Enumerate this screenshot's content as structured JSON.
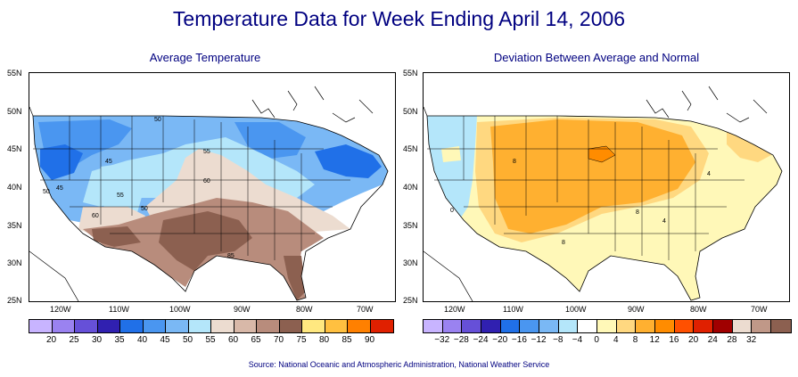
{
  "title": "Temperature Data for Week Ending April 14, 2006",
  "left_map": {
    "subtitle": "Average Temperature",
    "lat_labels": [
      "55N",
      "50N",
      "45N",
      "40N",
      "35N",
      "30N",
      "25N"
    ],
    "lon_labels": [
      "120W",
      "110W",
      "100W",
      "90W",
      "80W",
      "70W"
    ],
    "contour_labels": [
      "50",
      "55",
      "60",
      "45",
      "55",
      "50",
      "50",
      "45",
      "60",
      "85"
    ],
    "legend_colors": [
      "#c8b4ff",
      "#9a82f0",
      "#6650d8",
      "#3020b0",
      "#2070e8",
      "#4a96f0",
      "#7ab8f5",
      "#b4e6fa",
      "#ecdcd0",
      "#d8b8a8",
      "#b88c7c",
      "#8c6050",
      "#ffe880",
      "#ffc040",
      "#ff8000",
      "#e02000"
    ],
    "legend_labels": [
      "20",
      "25",
      "30",
      "35",
      "40",
      "45",
      "50",
      "55",
      "60",
      "65",
      "70",
      "75",
      "80",
      "85",
      "90"
    ]
  },
  "right_map": {
    "subtitle": "Deviation Between Average and Normal",
    "lat_labels": [
      "55N",
      "50N",
      "45N",
      "40N",
      "35N",
      "30N",
      "25N"
    ],
    "lon_labels": [
      "120W",
      "110W",
      "100W",
      "90W",
      "80W",
      "70W"
    ],
    "contour_labels": [
      "8",
      "0",
      "8",
      "4",
      "8",
      "4"
    ],
    "legend_colors": [
      "#c8b4ff",
      "#9a82f0",
      "#6650d8",
      "#3020b0",
      "#2070e8",
      "#4a96f0",
      "#7ab8f5",
      "#b4e6fa",
      "#ffffff",
      "#fff8b8",
      "#ffd880",
      "#ffb030",
      "#ff8c00",
      "#ff5000",
      "#e02000",
      "#a00000",
      "#ecdcd0",
      "#c09888",
      "#8c6050"
    ],
    "legend_labels": [
      "−32",
      "−28",
      "−24",
      "−20",
      "−16",
      "−12",
      "−8",
      "−4",
      "0",
      "4",
      "8",
      "12",
      "16",
      "20",
      "24",
      "28",
      "32"
    ]
  },
  "source": "Source:  National Oceanic and Atmospheric Administration, National Weather Service"
}
